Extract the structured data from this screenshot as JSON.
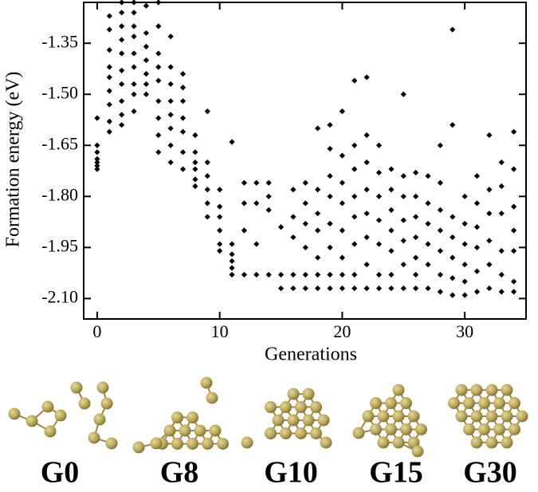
{
  "chart_data": {
    "type": "scatter",
    "xlabel": "Generations",
    "ylabel": "Formation energy (eV)",
    "color": "#000000",
    "marker": "diamond",
    "xlim": [
      -1.1,
      35
    ],
    "ylim": [
      -2.16,
      -1.23
    ],
    "xticks": [
      0,
      10,
      20,
      30
    ],
    "yticks": [
      -1.35,
      {
        "value": -1.5,
        "label": "-1.50"
      },
      -1.65,
      {
        "value": -1.8,
        "label": "-1.80"
      },
      -1.95,
      {
        "value": -2.1,
        "label": "-2.10"
      }
    ],
    "x": [
      0,
      0,
      0,
      0,
      0,
      0,
      0,
      1,
      1,
      1,
      1,
      1,
      1,
      1,
      1,
      1,
      2,
      2,
      2,
      2,
      2,
      2,
      2,
      2,
      2,
      2,
      3,
      3,
      3,
      3,
      3,
      3,
      3,
      3,
      3,
      4,
      4,
      4,
      4,
      4,
      4,
      4,
      5,
      5,
      5,
      5,
      5,
      5,
      5,
      5,
      5,
      6,
      6,
      6,
      6,
      6,
      6,
      6,
      6,
      7,
      7,
      7,
      7,
      7,
      7,
      7,
      8,
      8,
      8,
      8,
      8,
      8,
      9,
      9,
      9,
      9,
      9,
      9,
      10,
      10,
      10,
      10,
      10,
      10,
      11,
      11,
      11,
      11,
      11,
      11,
      12,
      12,
      12,
      12,
      13,
      13,
      13,
      13,
      14,
      14,
      14,
      14,
      15,
      15,
      15,
      16,
      16,
      16,
      16,
      16,
      17,
      17,
      17,
      17,
      17,
      17,
      18,
      18,
      18,
      18,
      18,
      18,
      18,
      19,
      19,
      19,
      19,
      19,
      19,
      19,
      19,
      20,
      20,
      20,
      20,
      20,
      20,
      20,
      20,
      21,
      21,
      21,
      21,
      21,
      21,
      21,
      21,
      22,
      22,
      22,
      22,
      22,
      22,
      22,
      22,
      23,
      23,
      23,
      23,
      23,
      23,
      23,
      24,
      24,
      24,
      24,
      24,
      24,
      24,
      25,
      25,
      25,
      25,
      25,
      25,
      25,
      26,
      26,
      26,
      26,
      26,
      26,
      26,
      27,
      27,
      27,
      27,
      27,
      27,
      28,
      28,
      28,
      28,
      28,
      28,
      28,
      29,
      29,
      29,
      29,
      29,
      29,
      29,
      30,
      30,
      30,
      30,
      30,
      30,
      31,
      31,
      31,
      31,
      31,
      31,
      32,
      32,
      32,
      32,
      32,
      32,
      33,
      33,
      33,
      33,
      33,
      33,
      34,
      34,
      34,
      34,
      34,
      34,
      34
    ],
    "y": [
      -1.57,
      -1.65,
      -1.67,
      -1.69,
      -1.7,
      -1.71,
      -1.72,
      -1.27,
      -1.31,
      -1.37,
      -1.42,
      -1.45,
      -1.49,
      -1.53,
      -1.58,
      -1.61,
      -1.23,
      -1.26,
      -1.3,
      -1.34,
      -1.38,
      -1.43,
      -1.47,
      -1.52,
      -1.56,
      -1.59,
      -1.23,
      -1.26,
      -1.3,
      -1.33,
      -1.38,
      -1.42,
      -1.47,
      -1.5,
      -1.55,
      -1.24,
      -1.32,
      -1.36,
      -1.4,
      -1.44,
      -1.47,
      -1.5,
      -1.23,
      -1.3,
      -1.38,
      -1.42,
      -1.46,
      -1.52,
      -1.57,
      -1.62,
      -1.67,
      -1.33,
      -1.42,
      -1.47,
      -1.52,
      -1.56,
      -1.6,
      -1.65,
      -1.7,
      -1.44,
      -1.48,
      -1.52,
      -1.57,
      -1.61,
      -1.67,
      -1.72,
      -1.62,
      -1.67,
      -1.7,
      -1.72,
      -1.75,
      -1.77,
      -1.55,
      -1.7,
      -1.74,
      -1.78,
      -1.82,
      -1.86,
      -1.78,
      -1.83,
      -1.86,
      -1.9,
      -1.94,
      -1.96,
      -1.64,
      -1.94,
      -1.97,
      -1.99,
      -2.01,
      -2.03,
      -1.76,
      -1.82,
      -1.9,
      -2.03,
      -1.76,
      -1.82,
      -1.94,
      -2.03,
      -1.76,
      -1.8,
      -1.84,
      -2.03,
      -1.89,
      -2.03,
      -2.07,
      -1.78,
      -1.86,
      -1.92,
      -2.03,
      -2.07,
      -1.76,
      -1.82,
      -1.88,
      -1.95,
      -2.03,
      -2.07,
      -1.6,
      -1.78,
      -1.85,
      -1.9,
      -1.98,
      -2.03,
      -2.07,
      -1.59,
      -1.66,
      -1.74,
      -1.8,
      -1.88,
      -1.95,
      -2.03,
      -2.07,
      -1.55,
      -1.68,
      -1.76,
      -1.82,
      -1.9,
      -1.98,
      -2.03,
      -2.07,
      -1.46,
      -1.65,
      -1.72,
      -1.8,
      -1.86,
      -1.94,
      -2.03,
      -2.07,
      -1.45,
      -1.62,
      -1.7,
      -1.78,
      -1.85,
      -1.92,
      -2.0,
      -2.07,
      -1.65,
      -1.73,
      -1.8,
      -1.87,
      -1.94,
      -2.03,
      -2.07,
      -1.72,
      -1.78,
      -1.84,
      -1.9,
      -1.96,
      -2.03,
      -2.07,
      -1.5,
      -1.74,
      -1.8,
      -1.87,
      -1.93,
      -2.0,
      -2.07,
      -1.73,
      -1.8,
      -1.86,
      -1.92,
      -1.98,
      -2.03,
      -2.07,
      -1.74,
      -1.82,
      -1.88,
      -1.94,
      -2.0,
      -2.07,
      -1.65,
      -1.76,
      -1.84,
      -1.9,
      -1.96,
      -2.03,
      -2.08,
      -1.31,
      -1.59,
      -1.86,
      -1.92,
      -1.98,
      -2.04,
      -2.09,
      -1.8,
      -1.88,
      -1.94,
      -2.0,
      -2.05,
      -2.09,
      -1.74,
      -1.82,
      -1.89,
      -1.95,
      -2.02,
      -2.08,
      -1.62,
      -1.78,
      -1.85,
      -1.93,
      -2.0,
      -2.07,
      -1.7,
      -1.77,
      -1.85,
      -1.96,
      -2.03,
      -2.08,
      -1.61,
      -1.72,
      -1.83,
      -1.9,
      -1.96,
      -2.05,
      -2.08
    ]
  },
  "structure_labels": [
    "G0",
    "G8",
    "G10",
    "G15",
    "G30"
  ]
}
